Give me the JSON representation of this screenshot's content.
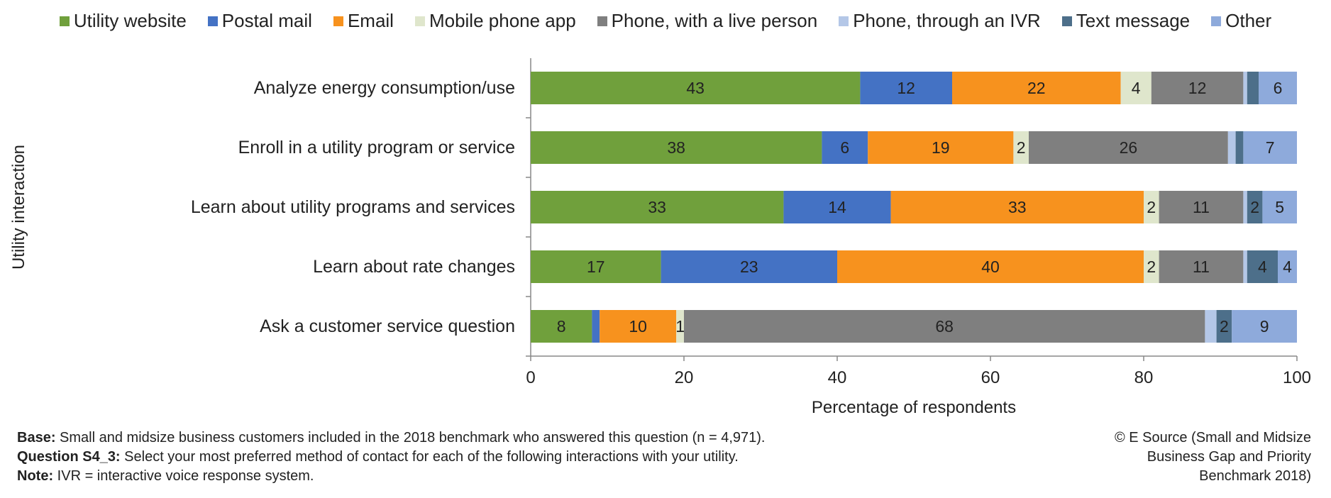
{
  "chart_data": {
    "type": "bar",
    "orientation": "horizontal",
    "stacked": true,
    "categories": [
      "Analyze energy consumption/use",
      "Enroll in a utility program or service",
      "Learn about utility programs and services",
      "Learn about rate changes",
      "Ask a customer service question"
    ],
    "series": [
      {
        "name": "Utility website",
        "color": "#70a03c",
        "values": [
          43,
          38,
          33,
          17,
          8
        ],
        "labels": [
          "43",
          "38",
          "33",
          "17",
          "8"
        ]
      },
      {
        "name": "Postal mail",
        "color": "#4472c4",
        "values": [
          12,
          6,
          14,
          23,
          1
        ],
        "labels": [
          "12",
          "6",
          "14",
          "23",
          ""
        ]
      },
      {
        "name": "Email",
        "color": "#f7921e",
        "values": [
          22,
          19,
          33,
          40,
          10
        ],
        "labels": [
          "22",
          "19",
          "33",
          "40",
          "10"
        ]
      },
      {
        "name": "Mobile phone app",
        "color": "#dfe6cc",
        "values": [
          4,
          2,
          2,
          2,
          1
        ],
        "labels": [
          "4",
          "2",
          "2",
          "2",
          "1"
        ]
      },
      {
        "name": "Phone, with a live person",
        "color": "#7f7f7f",
        "values": [
          12,
          26,
          11,
          11,
          68
        ],
        "labels": [
          "12",
          "26",
          "11",
          "11",
          "68"
        ]
      },
      {
        "name": "Phone, through an IVR",
        "color": "#b4c7e7",
        "values": [
          0.5,
          1,
          0.5,
          0.5,
          1.5
        ],
        "labels": [
          "",
          "",
          "",
          "",
          ""
        ]
      },
      {
        "name": "Text message",
        "color": "#4d6f8a",
        "values": [
          1.5,
          1,
          2,
          4,
          2
        ],
        "labels": [
          "",
          "",
          "2",
          "4",
          "2"
        ]
      },
      {
        "name": "Other",
        "color": "#8eaadb",
        "values": [
          6,
          7,
          5,
          4,
          9
        ],
        "labels": [
          "6",
          "7",
          "5",
          "4",
          "9"
        ]
      }
    ],
    "xlabel": "Percentage of respondents",
    "ylabel": "Utility interaction",
    "xlim": [
      0,
      100
    ],
    "xticks": [
      0,
      20,
      40,
      60,
      80,
      100
    ],
    "legend": "top"
  },
  "footnote": {
    "base_label": "Base:",
    "base_text": " Small and midsize business customers included in the 2018 benchmark who answered this question (n = 4,971).",
    "question_label": "Question S4_3:",
    "question_text": " Select your most preferred method of contact for each of the following interactions with your utility.",
    "note_label": "Note:",
    "note_text": " IVR = interactive voice response system."
  },
  "credit": "© E Source (Small and Midsize\nBusiness Gap and Priority\nBenchmark 2018)"
}
